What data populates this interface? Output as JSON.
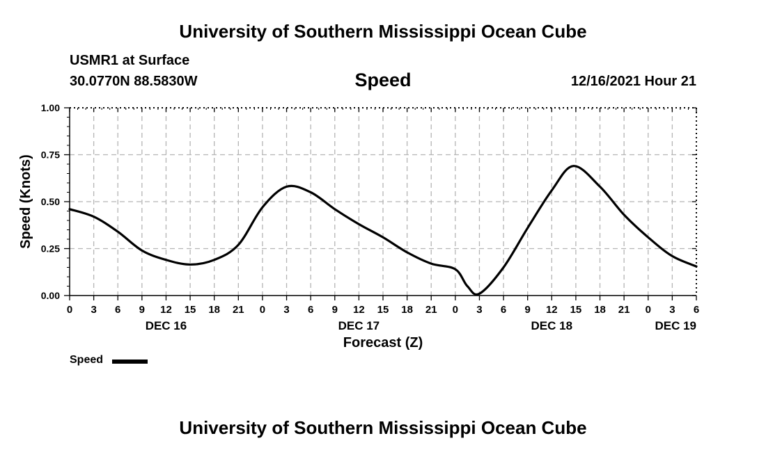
{
  "page": {
    "title_top": "University of Southern Mississippi Ocean Cube",
    "title_bottom": "University of Southern Mississippi Ocean Cube",
    "station": "USMR1 at Surface",
    "coords": "30.0770N  88.5830W",
    "chart_title": "Speed",
    "timestamp": "12/16/2021 Hour 21"
  },
  "chart_data": {
    "type": "line",
    "title": "Speed",
    "xlabel": "Forecast (Z)",
    "ylabel": "Speed (Knots)",
    "ylim": [
      0,
      1
    ],
    "xlim_hours": [
      0,
      78
    ],
    "yticks": [
      "0.00",
      "0.25",
      "0.50",
      "0.75",
      "1.00"
    ],
    "xticks": [
      "0",
      "3",
      "6",
      "9",
      "12",
      "15",
      "18",
      "21",
      "0",
      "3",
      "6",
      "9",
      "12",
      "15",
      "18",
      "21",
      "0",
      "3",
      "6",
      "9",
      "12",
      "15",
      "18",
      "21",
      "0",
      "3",
      "6"
    ],
    "day_labels": [
      {
        "label": "DEC 16",
        "hour": 12
      },
      {
        "label": "DEC 17",
        "hour": 36
      },
      {
        "label": "DEC 18",
        "hour": 60
      },
      {
        "label": "DEC 19",
        "hour": 78
      }
    ],
    "grid": true,
    "legend": [
      {
        "name": "Speed",
        "color": "#000000"
      }
    ],
    "series": [
      {
        "name": "Speed",
        "color": "#000000",
        "x": [
          0,
          3,
          6,
          9,
          12,
          15,
          18,
          21,
          24,
          27,
          30,
          33,
          36,
          39,
          42,
          45,
          48,
          49.5,
          51,
          54,
          57,
          60,
          62.7,
          66,
          69,
          72,
          75,
          78
        ],
        "y": [
          0.46,
          0.42,
          0.34,
          0.24,
          0.19,
          0.165,
          0.19,
          0.27,
          0.47,
          0.58,
          0.55,
          0.46,
          0.38,
          0.31,
          0.23,
          0.17,
          0.14,
          0.05,
          0.01,
          0.15,
          0.36,
          0.56,
          0.69,
          0.58,
          0.43,
          0.31,
          0.21,
          0.155
        ]
      }
    ]
  }
}
